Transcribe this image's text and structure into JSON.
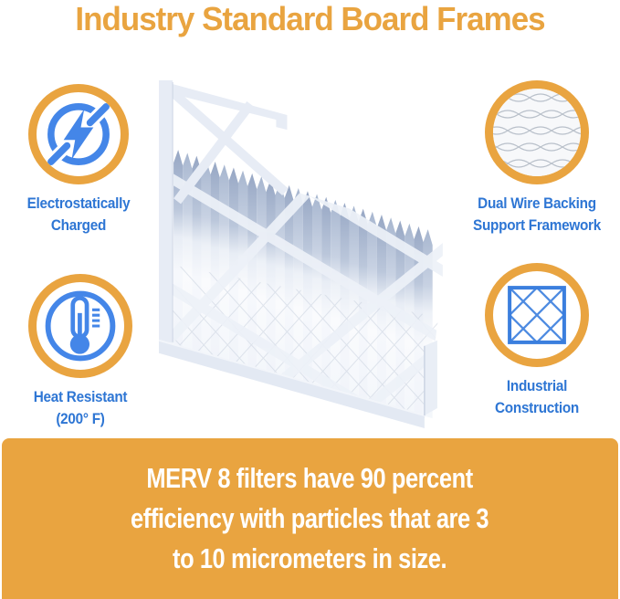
{
  "title": "Industry Standard Board Frames",
  "features": [
    {
      "icon": "lightning-circle-icon",
      "label_lines": [
        "Electrostatically",
        "Charged"
      ]
    },
    {
      "icon": "wire-mesh-photo-icon",
      "label_lines": [
        "Dual Wire Backing",
        "Support Framework"
      ]
    },
    {
      "icon": "thermometer-icon",
      "label_lines": [
        "Heat Resistant",
        "(200° F)"
      ]
    },
    {
      "icon": "diamond-lattice-icon",
      "label_lines": [
        "Industrial",
        "Construction"
      ]
    }
  ],
  "banner": {
    "lines": [
      "MERV 8 filters have 90 percent",
      "efficiency with particles that are 3",
      "to 10 micrometers in size."
    ]
  },
  "product_image": {
    "name": "pleated-air-filter-cutaway"
  },
  "colors": {
    "accent_orange": "#E9A440",
    "label_blue": "#2E76D4",
    "icon_blue": "#4486E8",
    "banner_text_white": "#FFFFFF"
  }
}
